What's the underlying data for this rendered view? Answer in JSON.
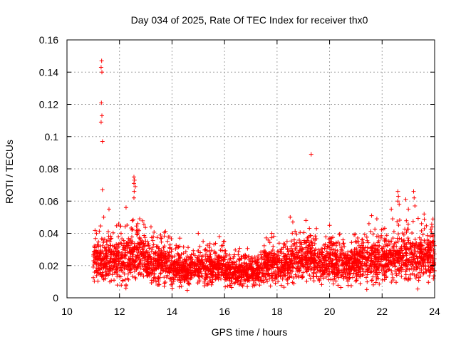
{
  "chart_data": {
    "type": "scatter",
    "title": "Day 034 of 2025, Rate Of TEC Index for receiver thx0",
    "xlabel": "GPS time / hours",
    "ylabel": "ROTI / TECUs",
    "xlim": [
      10,
      24
    ],
    "ylim": [
      0,
      0.16
    ],
    "grid": true,
    "x_ticks": [
      10,
      12,
      14,
      16,
      18,
      20,
      22,
      24
    ],
    "x_tick_labels": [
      "10",
      "12",
      "14",
      "16",
      "18",
      "20",
      "22",
      "24"
    ],
    "y_ticks": [
      0,
      0.02,
      0.04,
      0.06,
      0.08,
      0.1,
      0.12,
      0.14,
      0.16
    ],
    "y_tick_labels": [
      "0",
      "0.02",
      "0.04",
      "0.06",
      "0.08",
      "0.1",
      "0.12",
      "0.14",
      "0.16"
    ],
    "marker": "+",
    "marker_color": "#ff0000",
    "series": [
      {
        "name": "ROTI",
        "description": "dense cloud of ROTI samples between hour 11 and 24, mostly 0.005-0.035 TECU/s, with outliers",
        "density_profile": [
          {
            "start": 11.0,
            "end": 12.0,
            "low": 0.005,
            "high": 0.042
          },
          {
            "start": 12.0,
            "end": 13.0,
            "low": 0.004,
            "high": 0.045
          },
          {
            "start": 13.0,
            "end": 14.0,
            "low": 0.003,
            "high": 0.038
          },
          {
            "start": 14.0,
            "end": 15.0,
            "low": 0.004,
            "high": 0.03
          },
          {
            "start": 15.0,
            "end": 16.0,
            "low": 0.004,
            "high": 0.032
          },
          {
            "start": 16.0,
            "end": 17.5,
            "low": 0.004,
            "high": 0.028
          },
          {
            "start": 17.5,
            "end": 18.5,
            "low": 0.004,
            "high": 0.035
          },
          {
            "start": 18.5,
            "end": 19.5,
            "low": 0.005,
            "high": 0.04
          },
          {
            "start": 19.5,
            "end": 21.0,
            "low": 0.004,
            "high": 0.036
          },
          {
            "start": 21.0,
            "end": 22.5,
            "low": 0.004,
            "high": 0.04
          },
          {
            "start": 22.5,
            "end": 24.0,
            "low": 0.004,
            "high": 0.045
          }
        ],
        "outliers": [
          {
            "x": 11.32,
            "y": 0.147
          },
          {
            "x": 11.3,
            "y": 0.143
          },
          {
            "x": 11.33,
            "y": 0.14
          },
          {
            "x": 11.31,
            "y": 0.121
          },
          {
            "x": 11.33,
            "y": 0.113
          },
          {
            "x": 11.3,
            "y": 0.109
          },
          {
            "x": 11.35,
            "y": 0.097
          },
          {
            "x": 11.35,
            "y": 0.067
          },
          {
            "x": 11.4,
            "y": 0.05
          },
          {
            "x": 11.6,
            "y": 0.055
          },
          {
            "x": 12.25,
            "y": 0.056
          },
          {
            "x": 12.55,
            "y": 0.075
          },
          {
            "x": 12.57,
            "y": 0.073
          },
          {
            "x": 12.55,
            "y": 0.071
          },
          {
            "x": 12.6,
            "y": 0.069
          },
          {
            "x": 12.56,
            "y": 0.066
          },
          {
            "x": 12.55,
            "y": 0.062
          },
          {
            "x": 12.7,
            "y": 0.046
          },
          {
            "x": 13.2,
            "y": 0.044
          },
          {
            "x": 14.3,
            "y": 0.037
          },
          {
            "x": 15.0,
            "y": 0.04
          },
          {
            "x": 15.8,
            "y": 0.038
          },
          {
            "x": 17.8,
            "y": 0.04
          },
          {
            "x": 18.5,
            "y": 0.05
          },
          {
            "x": 18.6,
            "y": 0.047
          },
          {
            "x": 19.1,
            "y": 0.048
          },
          {
            "x": 19.3,
            "y": 0.089
          },
          {
            "x": 19.5,
            "y": 0.043
          },
          {
            "x": 20.0,
            "y": 0.045
          },
          {
            "x": 21.5,
            "y": 0.046
          },
          {
            "x": 21.8,
            "y": 0.049
          },
          {
            "x": 22.35,
            "y": 0.055
          },
          {
            "x": 22.6,
            "y": 0.066
          },
          {
            "x": 22.62,
            "y": 0.063
          },
          {
            "x": 22.6,
            "y": 0.06
          },
          {
            "x": 22.65,
            "y": 0.058
          },
          {
            "x": 22.9,
            "y": 0.061
          },
          {
            "x": 23.0,
            "y": 0.055
          },
          {
            "x": 23.2,
            "y": 0.066
          },
          {
            "x": 23.22,
            "y": 0.062
          },
          {
            "x": 23.25,
            "y": 0.057
          },
          {
            "x": 23.6,
            "y": 0.052
          },
          {
            "x": 23.5,
            "y": 0.046
          },
          {
            "x": 23.9,
            "y": 0.044
          },
          {
            "x": 22.4,
            "y": 0.049
          },
          {
            "x": 21.6,
            "y": 0.051
          }
        ]
      }
    ]
  }
}
